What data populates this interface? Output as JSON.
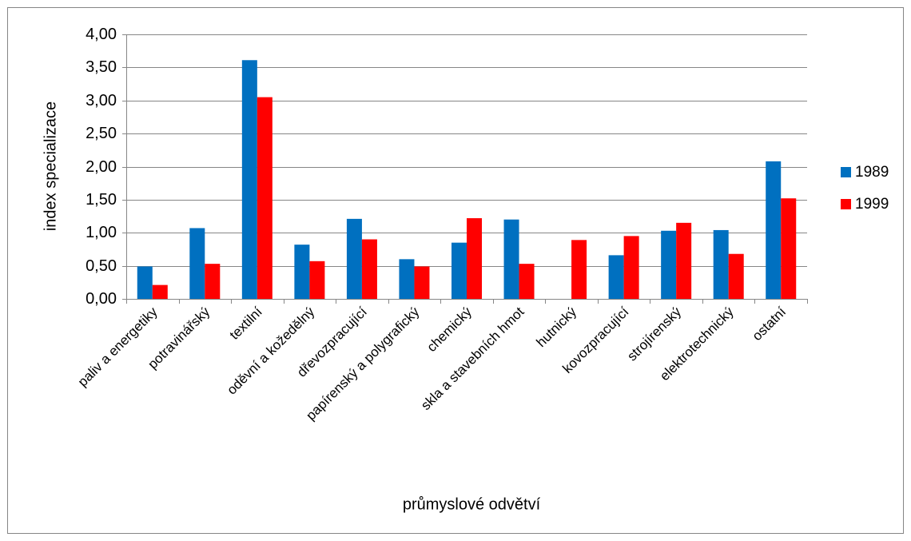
{
  "chart_data": {
    "type": "bar",
    "y_label": "index specializace",
    "x_label": "průmyslové odvětví",
    "categories": [
      "paliv a energetiky",
      "potravinářský",
      "textilní",
      "oděvní a kožedělný",
      "dřevozpracující",
      "papírenský a polygrafický",
      "chemický",
      "skla a stavebních hmot",
      "hutnický",
      "kovozpracující",
      "strojírenský",
      "elektrotechnický",
      "ostatní"
    ],
    "series": [
      {
        "name": "1989",
        "color": "#0070c0",
        "values": [
          0.49,
          1.07,
          3.61,
          0.82,
          1.21,
          0.6,
          0.85,
          1.2,
          null,
          0.66,
          1.03,
          1.04,
          2.08
        ]
      },
      {
        "name": "1999",
        "color": "#ff0000",
        "values": [
          0.21,
          0.53,
          3.05,
          0.57,
          0.9,
          0.49,
          1.22,
          0.53,
          0.89,
          0.95,
          1.15,
          0.68,
          1.52
        ]
      }
    ],
    "ylim": [
      0,
      4
    ],
    "yticks": [
      {
        "value": 0,
        "label": "0,00"
      },
      {
        "value": 0.5,
        "label": "0,50"
      },
      {
        "value": 1,
        "label": "1,00"
      },
      {
        "value": 1.5,
        "label": "1,50"
      },
      {
        "value": 2,
        "label": "2,00"
      },
      {
        "value": 2.5,
        "label": "2,50"
      },
      {
        "value": 3,
        "label": "3,00"
      },
      {
        "value": 3.5,
        "label": "3,50"
      },
      {
        "value": 4,
        "label": "4,00"
      }
    ],
    "grid": true,
    "legend": "right"
  }
}
